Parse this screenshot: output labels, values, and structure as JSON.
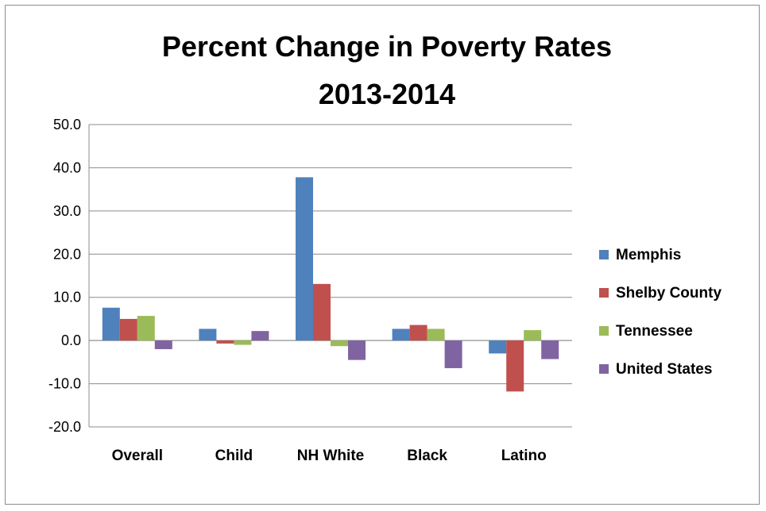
{
  "chart_data": {
    "type": "bar",
    "title": [
      "Percent Change in Poverty Rates",
      "2013-2014"
    ],
    "xlabel": "",
    "ylabel": "",
    "categories": [
      "Overall",
      "Child",
      "NH White",
      "Black",
      "Latino"
    ],
    "ylim": [
      -20,
      50
    ],
    "yticks": [
      -20,
      -10,
      0,
      10,
      20,
      30,
      40,
      50
    ],
    "ytick_labels": [
      "-20.0",
      "-10.0",
      "0.0",
      "10.0",
      "20.0",
      "30.0",
      "40.0",
      "50.0"
    ],
    "grid": "horizontal",
    "legend_position": "right",
    "series": [
      {
        "name": "Memphis",
        "color": "#4F81BD",
        "values": [
          7.6,
          2.7,
          37.8,
          2.7,
          -3.0
        ]
      },
      {
        "name": "Shelby County",
        "color": "#C0504D",
        "values": [
          5.0,
          -0.7,
          13.1,
          3.6,
          -11.8
        ]
      },
      {
        "name": "Tennessee",
        "color": "#9BBB59",
        "values": [
          5.7,
          -1.0,
          -1.3,
          2.7,
          2.4
        ]
      },
      {
        "name": "United States",
        "color": "#8064A2",
        "values": [
          -2.0,
          2.2,
          -4.5,
          -6.4,
          -4.3
        ]
      }
    ]
  }
}
